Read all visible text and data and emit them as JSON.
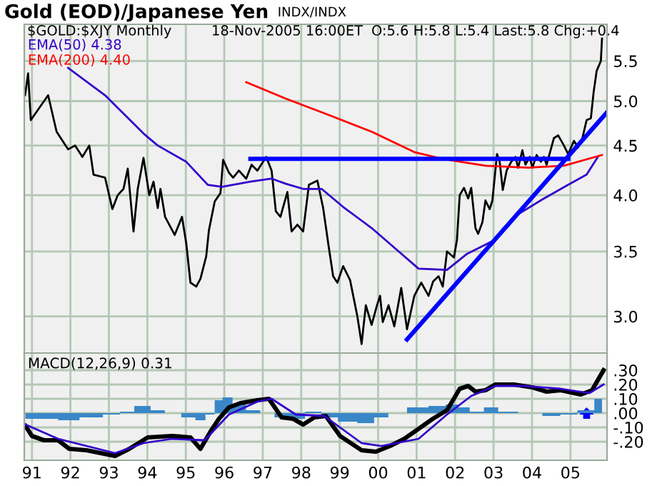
{
  "chart_data": [
    {
      "type": "line",
      "title": "Gold (EOD)/Japanese Yen",
      "subtitle": "INDX/INDX",
      "annotations": [
        "$GOLD:$XJY Monthly",
        "18-Nov-2005 16:00ET",
        "O:5.6 H:5.8 L:5.4 Last:5.8 Chg:+0.4"
      ],
      "log": true,
      "grid": true,
      "legend": "top left",
      "tick_labels": "y",
      "xlim": [
        1990.8,
        2005.95
      ],
      "xticks": [
        {
          "value": 1991,
          "label": null
        },
        {
          "value": 1992,
          "label": null
        },
        {
          "value": 1993,
          "label": null
        },
        {
          "value": 1994,
          "label": null
        },
        {
          "value": 1995,
          "label": null
        },
        {
          "value": 1996,
          "label": null
        },
        {
          "value": 1997,
          "label": null
        },
        {
          "value": 1998,
          "label": null
        },
        {
          "value": 1999,
          "label": null
        },
        {
          "value": 2000,
          "label": null
        },
        {
          "value": 2001,
          "label": null
        },
        {
          "value": 2002,
          "label": null
        },
        {
          "value": 2003,
          "label": null
        },
        {
          "value": 2004,
          "label": null
        },
        {
          "value": 2005,
          "label": null
        }
      ],
      "ylim": [
        2.75,
        6.0
      ],
      "yticks": [
        {
          "value": 3,
          "label": "3.0"
        },
        {
          "value": 3.5,
          "label": "3.5"
        },
        {
          "value": 4,
          "label": "4.0"
        },
        {
          "value": 4.5,
          "label": "4.5"
        },
        {
          "value": 5,
          "label": "5.0"
        },
        {
          "value": 5.5,
          "label": "5.5"
        }
      ],
      "series": [
        {
          "color": "#000000",
          "x": [
            1990.82,
            1990.9,
            1990.97,
            1991.42,
            1991.64,
            1991.94,
            1992.12,
            1992.31,
            1992.49,
            1992.6,
            1992.9,
            1993.09,
            1993.23,
            1993.38,
            1993.49,
            1993.64,
            1993.75,
            1993.9,
            1994.05,
            1994.16,
            1994.27,
            1994.34,
            1994.46,
            1994.71,
            1994.9,
            1995.01,
            1995.12,
            1995.27,
            1995.38,
            1995.53,
            1995.6,
            1995.75,
            1995.9,
            1995.97,
            1996.12,
            1996.23,
            1996.38,
            1996.57,
            1996.71,
            1996.86,
            1997.09,
            1997.23,
            1997.34,
            1997.46,
            1997.64,
            1997.75,
            1997.9,
            1998.05,
            1998.2,
            1998.42,
            1998.57,
            1998.71,
            1998.83,
            1998.94,
            1999.09,
            1999.27,
            1999.46,
            1999.57,
            1999.68,
            1999.83,
            1999.97,
            2000.05,
            2000.12,
            2000.27,
            2000.42,
            2000.6,
            2000.75,
            2000.94,
            2001.12,
            2001.31,
            2001.43,
            2001.57,
            2001.68,
            2001.79,
            2001.97,
            2002.05,
            2002.12,
            2002.23,
            2002.34,
            2002.42,
            2002.53,
            2002.6,
            2002.71,
            2002.79,
            2002.9,
            2002.97,
            2003.09,
            2003.16,
            2003.24,
            2003.34,
            2003.46,
            2003.57,
            2003.64,
            2003.75,
            2003.83,
            2003.94,
            2004.01,
            2004.12,
            2004.23,
            2004.31,
            2004.38,
            2004.57,
            2004.68,
            2004.83,
            2004.94,
            2005.09,
            2005.2,
            2005.31,
            2005.42,
            2005.53,
            2005.6,
            2005.68,
            2005.79,
            2005.82
          ],
          "values": [
            5.07,
            5.34,
            4.78,
            5.07,
            4.65,
            4.46,
            4.5,
            4.38,
            4.5,
            4.2,
            4.17,
            3.87,
            4.0,
            4.06,
            4.26,
            3.67,
            4.06,
            4.37,
            4.0,
            4.13,
            3.88,
            4.06,
            3.8,
            3.64,
            3.8,
            3.57,
            3.25,
            3.22,
            3.28,
            3.46,
            3.68,
            3.94,
            4.02,
            4.35,
            4.22,
            4.17,
            4.24,
            4.16,
            4.3,
            4.24,
            4.38,
            4.24,
            3.85,
            3.8,
            4.03,
            3.67,
            3.73,
            3.67,
            4.1,
            4.14,
            3.88,
            3.55,
            3.3,
            3.25,
            3.38,
            3.27,
            3.0,
            2.81,
            3.08,
            2.94,
            3.08,
            3.15,
            2.96,
            3.08,
            2.93,
            3.21,
            2.91,
            3.15,
            3.25,
            3.15,
            3.26,
            3.3,
            3.22,
            3.5,
            3.45,
            3.6,
            4.0,
            4.07,
            3.97,
            4.07,
            3.7,
            3.65,
            3.75,
            3.95,
            3.87,
            3.95,
            4.41,
            4.33,
            4.05,
            4.24,
            4.33,
            4.38,
            4.27,
            4.45,
            4.3,
            4.38,
            4.27,
            4.4,
            4.33,
            4.38,
            4.3,
            4.58,
            4.61,
            4.5,
            4.41,
            4.55,
            4.48,
            4.58,
            4.78,
            4.8,
            5.1,
            5.37,
            5.5,
            5.8
          ]
        },
        {
          "name": "EMA(50) 4.38",
          "color": "#3300cc",
          "x": [
            1991.94,
            1992.9,
            1993.9,
            1994.27,
            1995.01,
            1995.57,
            1995.94,
            1996.68,
            1997.23,
            1997.6,
            1998.05,
            1998.53,
            1999.09,
            1999.83,
            2000.57,
            2001.05,
            2001.79,
            2002.31,
            2003.05,
            2003.53,
            2004.27,
            2004.94,
            2005.42,
            2005.71
          ],
          "values": [
            5.41,
            5.07,
            4.63,
            4.5,
            4.33,
            4.1,
            4.08,
            4.13,
            4.16,
            4.11,
            4.06,
            4.06,
            3.89,
            3.7,
            3.49,
            3.36,
            3.35,
            3.48,
            3.6,
            3.8,
            3.96,
            4.1,
            4.2,
            4.38
          ]
        },
        {
          "name": "EMA(200) 4.40",
          "color": "#ff0000",
          "x": [
            1996.57,
            1997.6,
            1998.71,
            1999.83,
            2000.94,
            2001.68,
            2002.79,
            2003.9,
            2004.83,
            2005.82
          ],
          "values": [
            5.23,
            5.03,
            4.84,
            4.65,
            4.43,
            4.36,
            4.29,
            4.27,
            4.29,
            4.4
          ]
        },
        {
          "color": "#0000ff",
          "x": [
            1996.68,
            2004.94
          ],
          "values": [
            4.36,
            4.36
          ]
        },
        {
          "color": "#0000ff",
          "x": [
            2000.75,
            2005.95
          ],
          "values": [
            2.84,
            4.87
          ]
        }
      ]
    },
    {
      "type": "line",
      "title": "MACD(12,26,9) 0.31",
      "grid": true,
      "xlim": [
        1990.8,
        2005.95
      ],
      "xticks": [
        {
          "value": 1991,
          "label": "91"
        },
        {
          "value": 1992,
          "label": "92"
        },
        {
          "value": 1993,
          "label": "93"
        },
        {
          "value": 1994,
          "label": "94"
        },
        {
          "value": 1995,
          "label": "95"
        },
        {
          "value": 1996,
          "label": "96"
        },
        {
          "value": 1997,
          "label": "97"
        },
        {
          "value": 1998,
          "label": "98"
        },
        {
          "value": 1999,
          "label": "99"
        },
        {
          "value": 2000,
          "label": "00"
        },
        {
          "value": 2001,
          "label": "01"
        },
        {
          "value": 2002,
          "label": "02"
        },
        {
          "value": 2003,
          "label": "03"
        },
        {
          "value": 2004,
          "label": "04"
        },
        {
          "value": 2005,
          "label": "05"
        }
      ],
      "ylim": [
        -0.33,
        0.42
      ],
      "yticks": [
        {
          "value": -0.2,
          "label": "-.20"
        },
        {
          "value": -0.1,
          "label": "-.10"
        },
        {
          "value": 0,
          "label": ".00"
        },
        {
          "value": 0.1,
          "label": ".10"
        },
        {
          "value": 0.2,
          "label": ".20"
        },
        {
          "value": 0.3,
          "label": ".30"
        }
      ],
      "series": [
        {
          "type": "area",
          "color": "#3a87c8",
          "x": [
            1990.83,
            1991.42,
            1991.94,
            1992.53,
            1993.16,
            1993.42,
            1993.9,
            1994.27,
            1994.64,
            1995.12,
            1995.38,
            1995.64,
            1995.86,
            1996.05,
            1996.38,
            1996.75,
            1997.12,
            1997.49,
            1997.86,
            1998.34,
            1998.71,
            1999.2,
            1999.71,
            2000.08,
            2000.45,
            2001.05,
            2001.57,
            2001.94,
            2002.23,
            2002.53,
            2002.97,
            2003.27,
            2004.01,
            2004.53,
            2004.94,
            2005.42,
            2005.82
          ],
          "values": [
            -0.04,
            -0.04,
            -0.05,
            -0.03,
            -0.01,
            0.01,
            0.05,
            0.02,
            0,
            -0.03,
            -0.05,
            -0.01,
            0.09,
            0.11,
            0.06,
            0.02,
            0,
            -0.03,
            -0.04,
            0.01,
            -0.03,
            -0.06,
            -0.07,
            -0.03,
            0,
            0.04,
            0.05,
            0.06,
            0.04,
            0.01,
            0.04,
            0.01,
            0,
            -0.02,
            -0.01,
            0.02,
            0.1
          ]
        },
        {
          "color": "#000000",
          "x": [
            1990.83,
            1991.0,
            1991.31,
            1991.68,
            1991.97,
            1992.42,
            1992.79,
            1993.16,
            1993.53,
            1994.01,
            1994.64,
            1995.12,
            1995.38,
            1995.64,
            1995.86,
            1996.12,
            1996.42,
            1996.86,
            1997.16,
            1997.49,
            1997.79,
            1998.05,
            1998.34,
            1998.64,
            1999.01,
            1999.57,
            1999.94,
            2000.31,
            2000.68,
            2001.05,
            2001.42,
            2001.79,
            2002.12,
            2002.34,
            2002.53,
            2002.79,
            2003.05,
            2003.53,
            2004.01,
            2004.38,
            2004.75,
            2005.27,
            2005.56,
            2005.86
          ],
          "values": [
            -0.09,
            -0.16,
            -0.19,
            -0.19,
            -0.25,
            -0.26,
            -0.28,
            -0.3,
            -0.25,
            -0.17,
            -0.16,
            -0.17,
            -0.25,
            -0.13,
            -0.04,
            0.04,
            0.07,
            0.09,
            0.1,
            -0.03,
            -0.04,
            -0.08,
            -0.03,
            -0.02,
            -0.16,
            -0.26,
            -0.27,
            -0.23,
            -0.18,
            -0.11,
            -0.04,
            0.02,
            0.17,
            0.19,
            0.15,
            0.16,
            0.2,
            0.2,
            0.18,
            0.15,
            0.16,
            0.13,
            0.16,
            0.3
          ]
        },
        {
          "color": "#3300cc",
          "x": [
            1990.83,
            1991.68,
            1993.16,
            1993.9,
            1994.64,
            1995.49,
            1996.12,
            1996.86,
            1997.23,
            1997.86,
            1998.6,
            1999.57,
            2000.08,
            2001.05,
            2001.79,
            2002.42,
            2003.05,
            2003.79,
            2004.75,
            2005.49,
            2005.86
          ],
          "values": [
            -0.08,
            -0.18,
            -0.28,
            -0.21,
            -0.18,
            -0.19,
            -0.01,
            0.08,
            0.1,
            -0.01,
            -0.02,
            -0.21,
            -0.23,
            -0.18,
            -0.01,
            0.12,
            0.19,
            0.19,
            0.17,
            0.14,
            0.2
          ]
        }
      ]
    }
  ]
}
